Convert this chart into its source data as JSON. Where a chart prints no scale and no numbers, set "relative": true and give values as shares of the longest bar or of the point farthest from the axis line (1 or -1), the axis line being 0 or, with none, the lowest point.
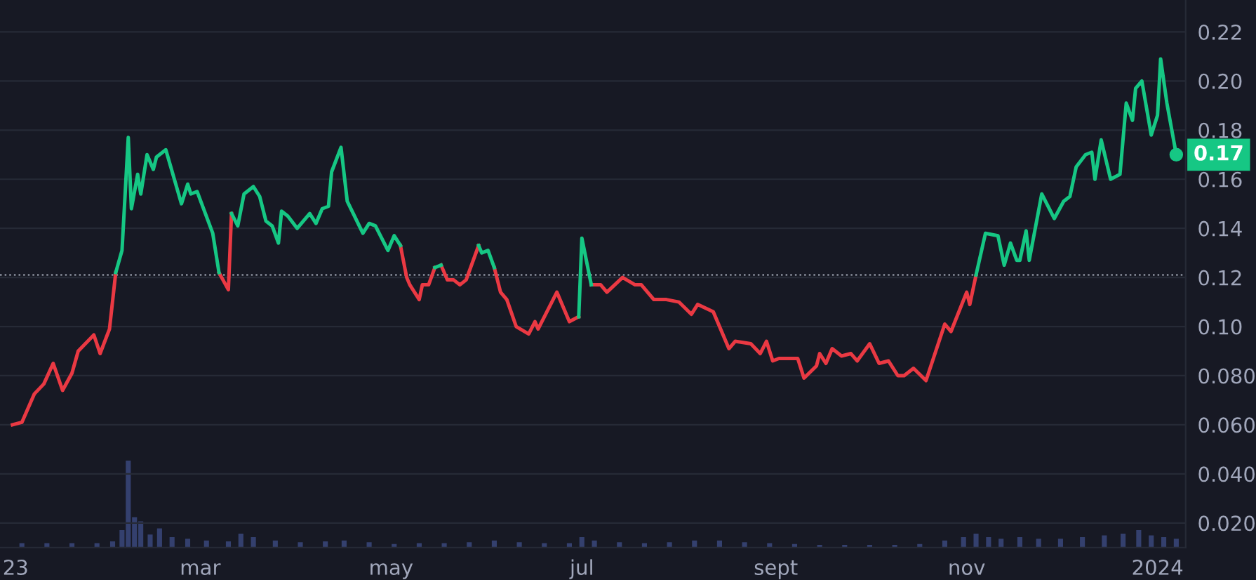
{
  "chart_data": [
    {
      "type": "line",
      "xlim": [
        "2022-12-27",
        "2024-01-10"
      ],
      "xticks": [
        {
          "value": "2023-01-01",
          "label": "23"
        },
        {
          "value": "2023-03-01",
          "label": "mar"
        },
        {
          "value": "2023-05-01",
          "label": "may"
        },
        {
          "value": "2023-07-01",
          "label": "jul"
        },
        {
          "value": "2023-09-01",
          "label": "sept"
        },
        {
          "value": "2023-11-01",
          "label": "nov"
        },
        {
          "value": "2024-01-01",
          "label": "2024"
        }
      ],
      "ylim": [
        0.01,
        0.233
      ],
      "yticks": [
        {
          "value": 0.02,
          "label": "0.020"
        },
        {
          "value": 0.04,
          "label": "0.040"
        },
        {
          "value": 0.06,
          "label": "0.060"
        },
        {
          "value": 0.08,
          "label": "0.080"
        },
        {
          "value": 0.1,
          "label": "0.10"
        },
        {
          "value": 0.12,
          "label": "0.12"
        },
        {
          "value": 0.14,
          "label": "0.14"
        },
        {
          "value": 0.16,
          "label": "0.16"
        },
        {
          "value": 0.18,
          "label": "0.18"
        },
        {
          "value": 0.2,
          "label": "0.20"
        },
        {
          "value": 0.22,
          "label": "0.22"
        }
      ],
      "grid": "y",
      "line_style": "solid",
      "ref_lines": [
        {
          "axis": "y",
          "value": 0.121,
          "color": "#8a8f9c",
          "line_style": "dotted"
        }
      ],
      "annotations": [
        {
          "text": "0.17",
          "x": "2024-01-07",
          "y": 0.17
        }
      ],
      "series": [
        {
          "color": "#ea3943",
          "x": [
            "2022-12-31",
            "2023-01-03",
            "2023-01-07",
            "2023-01-10",
            "2023-01-13",
            "2023-01-16",
            "2023-01-19",
            "2023-01-21",
            "2023-01-26",
            "2023-01-28",
            "2023-01-31",
            "2023-02-02",
            "2023-02-20",
            "2023-03-07",
            "2023-03-10",
            "2023-03-11",
            "2023-04-01",
            "2023-05-04",
            "2023-05-06",
            "2023-05-07",
            "2023-05-10",
            "2023-05-11",
            "2023-05-13",
            "2023-05-15",
            "2023-05-16",
            "2023-05-17",
            "2023-05-19",
            "2023-05-21",
            "2023-05-23",
            "2023-05-25",
            "2023-05-29",
            "2023-05-31",
            "2023-06-03",
            "2023-06-05",
            "2023-06-07",
            "2023-06-10",
            "2023-06-14",
            "2023-06-16",
            "2023-06-17",
            "2023-06-23",
            "2023-06-27",
            "2023-06-30",
            "2023-07-01",
            "2023-07-04",
            "2023-07-07",
            "2023-07-09",
            "2023-07-14",
            "2023-07-18",
            "2023-07-20",
            "2023-07-24",
            "2023-07-28",
            "2023-08-01",
            "2023-08-05",
            "2023-08-07",
            "2023-08-12",
            "2023-08-17",
            "2023-08-19",
            "2023-08-24",
            "2023-08-27",
            "2023-08-29",
            "2023-08-31",
            "2023-09-02",
            "2023-09-08",
            "2023-09-10",
            "2023-09-14",
            "2023-09-15",
            "2023-09-17",
            "2023-09-19",
            "2023-09-22",
            "2023-09-25",
            "2023-09-27",
            "2023-10-01",
            "2023-10-04",
            "2023-10-07",
            "2023-10-10",
            "2023-10-12",
            "2023-10-15",
            "2023-10-19",
            "2023-10-25",
            "2023-10-27",
            "2023-11-01",
            "2023-11-02",
            "2023-11-04"
          ],
          "values": [
            0.06,
            0.061,
            0.0726,
            0.0766,
            0.085,
            0.074,
            0.081,
            0.09,
            0.0966,
            0.089,
            0.099,
            0.122,
            null,
            0.122,
            0.115,
            0.146,
            null,
            0.133,
            0.12,
            0.117,
            0.111,
            0.117,
            0.117,
            0.124,
            null,
            0.125,
            0.119,
            0.119,
            0.117,
            0.119,
            0.133,
            null,
            0.124,
            0.114,
            0.111,
            0.1,
            0.097,
            0.102,
            0.099,
            0.114,
            0.102,
            0.104,
            null,
            0.117,
            0.117,
            0.114,
            0.12,
            0.117,
            0.117,
            0.111,
            0.111,
            0.11,
            0.105,
            0.109,
            0.106,
            0.091,
            0.094,
            0.093,
            0.089,
            0.094,
            0.086,
            0.087,
            0.087,
            0.079,
            0.084,
            0.089,
            0.085,
            0.091,
            0.088,
            0.089,
            0.086,
            0.093,
            0.085,
            0.086,
            0.08,
            0.08,
            0.083,
            0.078,
            0.101,
            0.098,
            0.114,
            0.109,
            0.121
          ]
        },
        {
          "color": "#16c784",
          "x": [
            "2023-02-02",
            "2023-02-04",
            "2023-02-06",
            "2023-02-07",
            "2023-02-09",
            "2023-02-10",
            "2023-02-12",
            "2023-02-14",
            "2023-02-15",
            "2023-02-18",
            "2023-02-23",
            "2023-02-25",
            "2023-02-26",
            "2023-02-28",
            "2023-03-05",
            "2023-03-07",
            "2023-03-09",
            "2023-03-11",
            "2023-03-13",
            "2023-03-15",
            "2023-03-18",
            "2023-03-20",
            "2023-03-22",
            "2023-03-24",
            "2023-03-26",
            "2023-03-27",
            "2023-03-29",
            "2023-04-01",
            "2023-04-05",
            "2023-04-07",
            "2023-04-09",
            "2023-04-11",
            "2023-04-12",
            "2023-04-15",
            "2023-04-17",
            "2023-04-22",
            "2023-04-24",
            "2023-04-26",
            "2023-04-30",
            "2023-05-02",
            "2023-05-04",
            "2023-05-14",
            "2023-05-15",
            "2023-05-17",
            "2023-05-27",
            "2023-05-29",
            "2023-05-30",
            "2023-06-01",
            "2023-06-03",
            "2023-06-20",
            "2023-06-30",
            "2023-07-01",
            "2023-07-04",
            "2023-08-01",
            "2023-11-04",
            "2023-11-07",
            "2023-11-11",
            "2023-11-13",
            "2023-11-15",
            "2023-11-17",
            "2023-11-18",
            "2023-11-20",
            "2023-11-21",
            "2023-11-25",
            "2023-11-29",
            "2023-12-02",
            "2023-12-04",
            "2023-12-06",
            "2023-12-09",
            "2023-12-11",
            "2023-12-12",
            "2023-12-14",
            "2023-12-17",
            "2023-12-20",
            "2023-12-22",
            "2023-12-24",
            "2023-12-25",
            "2023-12-27",
            "2023-12-30",
            "2024-01-01",
            "2024-01-02",
            "2024-01-04",
            "2024-01-05",
            "2024-01-07"
          ],
          "values": [
            0.122,
            0.131,
            0.177,
            0.148,
            0.162,
            0.154,
            0.17,
            0.164,
            0.169,
            0.172,
            0.15,
            0.158,
            0.154,
            0.155,
            0.138,
            0.122,
            null,
            0.146,
            0.141,
            0.154,
            0.157,
            0.153,
            0.143,
            0.141,
            0.134,
            0.147,
            0.145,
            0.14,
            0.146,
            0.142,
            0.148,
            0.149,
            0.163,
            0.173,
            0.151,
            0.138,
            0.142,
            0.141,
            0.131,
            0.137,
            0.133,
            null,
            0.124,
            0.125,
            null,
            0.133,
            0.13,
            0.131,
            0.124,
            null,
            0.104,
            0.136,
            0.117,
            null,
            0.121,
            0.138,
            0.137,
            0.125,
            0.134,
            0.127,
            0.127,
            0.139,
            0.127,
            0.154,
            0.144,
            0.151,
            0.153,
            0.165,
            0.17,
            0.171,
            0.16,
            0.176,
            0.16,
            0.162,
            0.191,
            0.184,
            0.197,
            0.2,
            0.178,
            0.186,
            0.209,
            0.191,
            0.184,
            0.17
          ]
        }
      ]
    },
    {
      "type": "bar",
      "relative": true,
      "color": "#34406e",
      "xlim": [
        "2022-12-27",
        "2024-01-10"
      ],
      "x": [
        "2023-01-03",
        "2023-01-11",
        "2023-01-19",
        "2023-01-27",
        "2023-02-01",
        "2023-02-04",
        "2023-02-06",
        "2023-02-08",
        "2023-02-10",
        "2023-02-13",
        "2023-02-16",
        "2023-02-20",
        "2023-02-25",
        "2023-03-03",
        "2023-03-10",
        "2023-03-14",
        "2023-03-18",
        "2023-03-25",
        "2023-04-02",
        "2023-04-10",
        "2023-04-16",
        "2023-04-24",
        "2023-05-02",
        "2023-05-10",
        "2023-05-18",
        "2023-05-26",
        "2023-06-03",
        "2023-06-11",
        "2023-06-19",
        "2023-06-27",
        "2023-07-01",
        "2023-07-05",
        "2023-07-13",
        "2023-07-21",
        "2023-07-29",
        "2023-08-06",
        "2023-08-14",
        "2023-08-22",
        "2023-08-30",
        "2023-09-07",
        "2023-09-15",
        "2023-09-23",
        "2023-10-01",
        "2023-10-09",
        "2023-10-17",
        "2023-10-25",
        "2023-10-31",
        "2023-11-04",
        "2023-11-08",
        "2023-11-12",
        "2023-11-18",
        "2023-11-24",
        "2023-12-01",
        "2023-12-08",
        "2023-12-15",
        "2023-12-21",
        "2023-12-26",
        "2023-12-30",
        "2024-01-03",
        "2024-01-07"
      ],
      "values": [
        0.05,
        0.05,
        0.05,
        0.05,
        0.07,
        0.2,
        1.0,
        0.35,
        0.3,
        0.15,
        0.22,
        0.12,
        0.1,
        0.08,
        0.07,
        0.16,
        0.12,
        0.08,
        0.06,
        0.07,
        0.08,
        0.06,
        0.04,
        0.05,
        0.05,
        0.06,
        0.08,
        0.06,
        0.05,
        0.05,
        0.12,
        0.08,
        0.06,
        0.05,
        0.06,
        0.08,
        0.08,
        0.06,
        0.05,
        0.04,
        0.03,
        0.03,
        0.03,
        0.03,
        0.04,
        0.08,
        0.12,
        0.16,
        0.12,
        0.1,
        0.12,
        0.1,
        0.1,
        0.12,
        0.14,
        0.16,
        0.2,
        0.14,
        0.12,
        0.1
      ]
    }
  ]
}
